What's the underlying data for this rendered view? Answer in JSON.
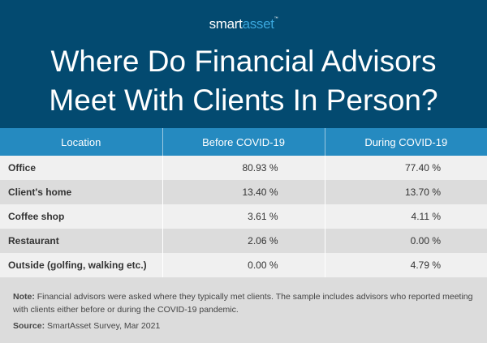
{
  "logo": {
    "text_smart": "smart",
    "text_asset": "asset",
    "tm": "™"
  },
  "title_line1": "Where Do Financial Advisors",
  "title_line2": "Meet With Clients In Person?",
  "colors": {
    "header_bg": "#034a70",
    "table_header_bg": "#258ac0",
    "logo_accent": "#3aa7dd",
    "row_light": "#f0f0f0",
    "row_dark": "#dcdcdc"
  },
  "chart_data": {
    "type": "table",
    "columns": [
      "Location",
      "Before COVID-19",
      "During COVID-19"
    ],
    "rows": [
      [
        "Office",
        "80.93 %",
        "77.40 %"
      ],
      [
        "Client's home",
        "13.40 %",
        "13.70 %"
      ],
      [
        "Coffee shop",
        "3.61 %",
        "4.11 %"
      ],
      [
        "Restaurant",
        "2.06 %",
        "0.00 %"
      ],
      [
        "Outside (golfing, walking etc.)",
        "0.00 %",
        "4.79 %"
      ]
    ]
  },
  "footer": {
    "note_label": "Note:",
    "note_text": " Financial advisors were asked where they typically met clients. The sample includes advisors who reported meeting with clients either before or during the COVID-19 pandemic.",
    "source_label": "Source:",
    "source_text": " SmartAsset Survey, Mar 2021"
  }
}
